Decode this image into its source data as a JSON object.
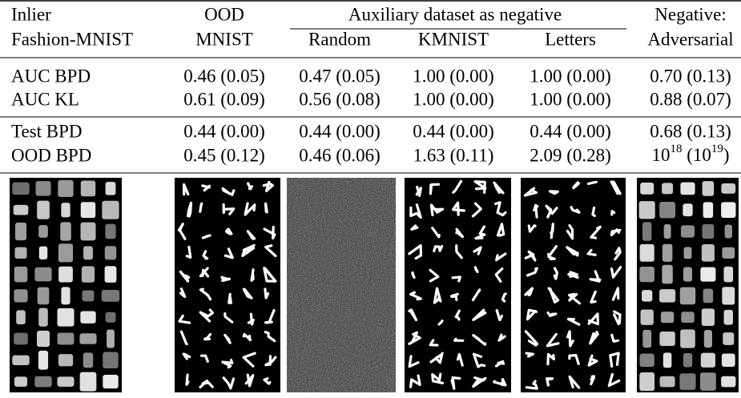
{
  "header": {
    "row1": [
      "Inlier",
      "OOD",
      "Auxiliary dataset as negative",
      "Negative:"
    ],
    "row2": [
      "Fashion-MNIST",
      "MNIST",
      "Random",
      "KMNIST",
      "Letters",
      "Adversarial"
    ]
  },
  "rows": [
    [
      "AUC BPD",
      "0.46 (0.05)",
      "0.47 (0.05)",
      "1.00 (0.00)",
      "1.00 (0.00)",
      "0.70 (0.13)"
    ],
    [
      "AUC KL",
      "0.61 (0.09)",
      "0.56 (0.08)",
      "1.00 (0.00)",
      "1.00 (0.00)",
      "0.88 (0.07)"
    ],
    [
      "Test BPD",
      "0.44 (0.00)",
      "0.44 (0.00)",
      "0.44 (0.00)",
      "0.44 (0.00)",
      "0.68 (0.13)"
    ],
    [
      "OOD BPD",
      "0.45 (0.12)",
      "0.46 (0.06)",
      "1.63 (0.11)",
      "2.09 (0.28)",
      [
        {
          "t": "10"
        },
        {
          "sup": "18"
        },
        {
          "t": " ("
        },
        {
          "t": "10"
        },
        {
          "sup": "19"
        },
        {
          "t": ")"
        }
      ]
    ]
  ]
}
